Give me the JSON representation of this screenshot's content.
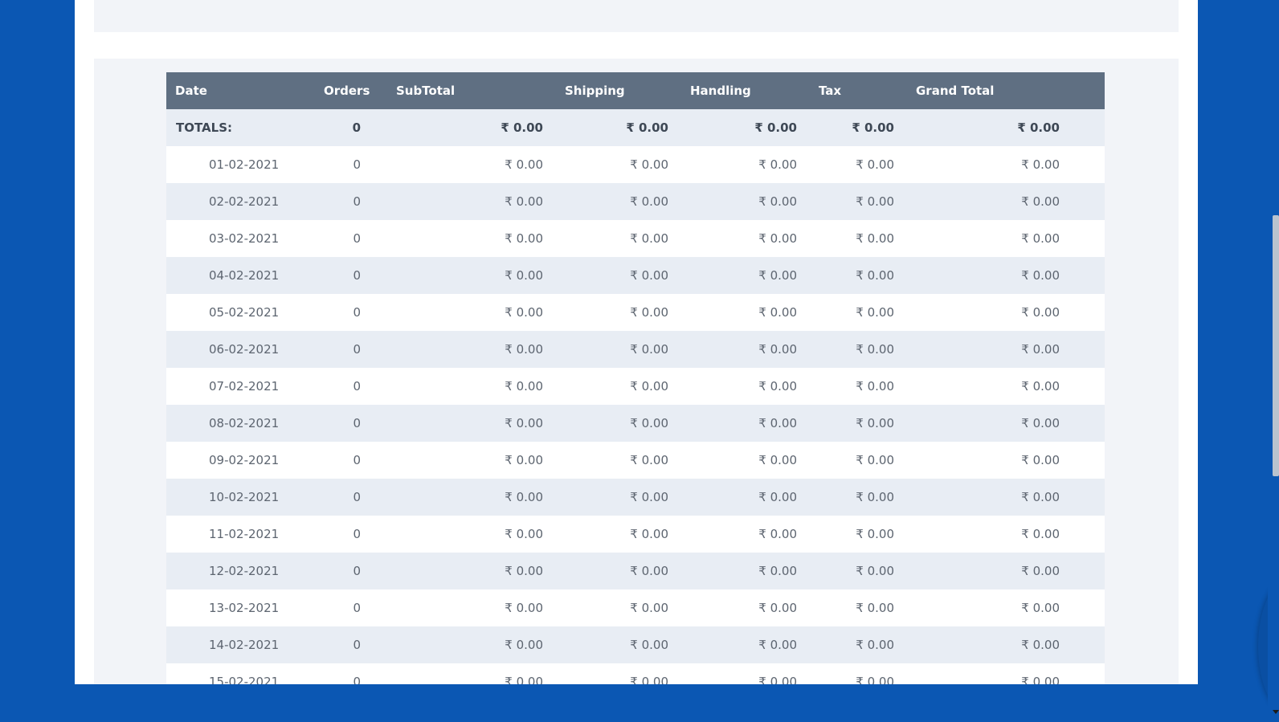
{
  "colors": {
    "background": "#0b57b3",
    "panel": "#f2f4f8",
    "header": "#5f6f82",
    "row_alt": "#e8edf4"
  },
  "table": {
    "columns": [
      "Date",
      "Orders",
      "SubTotal",
      "Shipping",
      "Handling",
      "Tax",
      "Grand Total"
    ],
    "totals": {
      "label": "TOTALS:",
      "orders": "0",
      "subtotal": "₹ 0.00",
      "shipping": "₹ 0.00",
      "handling": "₹ 0.00",
      "tax": "₹ 0.00",
      "grand_total": "₹ 0.00"
    },
    "rows": [
      {
        "date": "01-02-2021",
        "orders": "0",
        "subtotal": "₹ 0.00",
        "shipping": "₹ 0.00",
        "handling": "₹ 0.00",
        "tax": "₹ 0.00",
        "grand_total": "₹ 0.00"
      },
      {
        "date": "02-02-2021",
        "orders": "0",
        "subtotal": "₹ 0.00",
        "shipping": "₹ 0.00",
        "handling": "₹ 0.00",
        "tax": "₹ 0.00",
        "grand_total": "₹ 0.00"
      },
      {
        "date": "03-02-2021",
        "orders": "0",
        "subtotal": "₹ 0.00",
        "shipping": "₹ 0.00",
        "handling": "₹ 0.00",
        "tax": "₹ 0.00",
        "grand_total": "₹ 0.00"
      },
      {
        "date": "04-02-2021",
        "orders": "0",
        "subtotal": "₹ 0.00",
        "shipping": "₹ 0.00",
        "handling": "₹ 0.00",
        "tax": "₹ 0.00",
        "grand_total": "₹ 0.00"
      },
      {
        "date": "05-02-2021",
        "orders": "0",
        "subtotal": "₹ 0.00",
        "shipping": "₹ 0.00",
        "handling": "₹ 0.00",
        "tax": "₹ 0.00",
        "grand_total": "₹ 0.00"
      },
      {
        "date": "06-02-2021",
        "orders": "0",
        "subtotal": "₹ 0.00",
        "shipping": "₹ 0.00",
        "handling": "₹ 0.00",
        "tax": "₹ 0.00",
        "grand_total": "₹ 0.00"
      },
      {
        "date": "07-02-2021",
        "orders": "0",
        "subtotal": "₹ 0.00",
        "shipping": "₹ 0.00",
        "handling": "₹ 0.00",
        "tax": "₹ 0.00",
        "grand_total": "₹ 0.00"
      },
      {
        "date": "08-02-2021",
        "orders": "0",
        "subtotal": "₹ 0.00",
        "shipping": "₹ 0.00",
        "handling": "₹ 0.00",
        "tax": "₹ 0.00",
        "grand_total": "₹ 0.00"
      },
      {
        "date": "09-02-2021",
        "orders": "0",
        "subtotal": "₹ 0.00",
        "shipping": "₹ 0.00",
        "handling": "₹ 0.00",
        "tax": "₹ 0.00",
        "grand_total": "₹ 0.00"
      },
      {
        "date": "10-02-2021",
        "orders": "0",
        "subtotal": "₹ 0.00",
        "shipping": "₹ 0.00",
        "handling": "₹ 0.00",
        "tax": "₹ 0.00",
        "grand_total": "₹ 0.00"
      },
      {
        "date": "11-02-2021",
        "orders": "0",
        "subtotal": "₹ 0.00",
        "shipping": "₹ 0.00",
        "handling": "₹ 0.00",
        "tax": "₹ 0.00",
        "grand_total": "₹ 0.00"
      },
      {
        "date": "12-02-2021",
        "orders": "0",
        "subtotal": "₹ 0.00",
        "shipping": "₹ 0.00",
        "handling": "₹ 0.00",
        "tax": "₹ 0.00",
        "grand_total": "₹ 0.00"
      },
      {
        "date": "13-02-2021",
        "orders": "0",
        "subtotal": "₹ 0.00",
        "shipping": "₹ 0.00",
        "handling": "₹ 0.00",
        "tax": "₹ 0.00",
        "grand_total": "₹ 0.00"
      },
      {
        "date": "14-02-2021",
        "orders": "0",
        "subtotal": "₹ 0.00",
        "shipping": "₹ 0.00",
        "handling": "₹ 0.00",
        "tax": "₹ 0.00",
        "grand_total": "₹ 0.00"
      },
      {
        "date": "15-02-2021",
        "orders": "0",
        "subtotal": "₹ 0.00",
        "shipping": "₹ 0.00",
        "handling": "₹ 0.00",
        "tax": "₹ 0.00",
        "grand_total": "₹ 0.00"
      }
    ]
  }
}
